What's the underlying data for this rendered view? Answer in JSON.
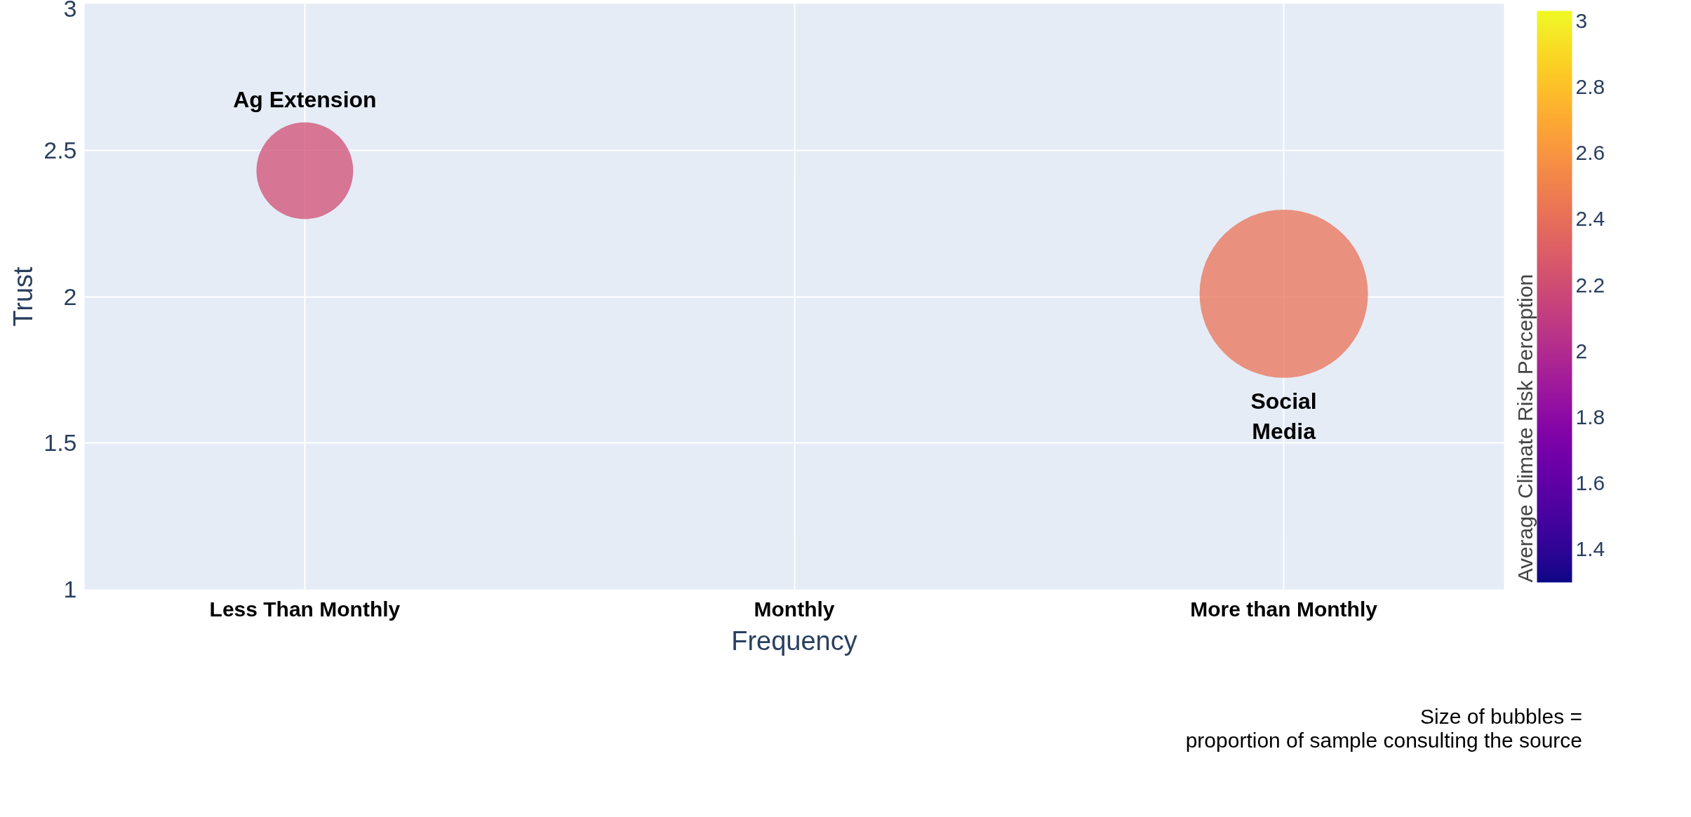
{
  "chart_data": {
    "type": "bubble",
    "xlabel": "Frequency",
    "ylabel": "Trust",
    "clabel": "Average Climate Risk Perception",
    "categories": [
      "Less Than Monthly",
      "Monthly",
      "More than Monthly"
    ],
    "series": [
      {
        "name": "Ag Extension",
        "values": [
          2.43,
          null,
          null
        ],
        "sizes": [
          0.33,
          null,
          null
        ],
        "cvalues": [
          2.2,
          null,
          null
        ]
      },
      {
        "name": "Social\nMedia",
        "values": [
          null,
          null,
          2.01
        ],
        "sizes": [
          null,
          null,
          1
        ],
        "cvalues": [
          null,
          null,
          2.42
        ]
      }
    ],
    "clim": [
      1.3,
      3.03
    ],
    "cticks": [
      1.4,
      1.6,
      1.8,
      2,
      2.2,
      2.4,
      2.6,
      2.8,
      3
    ],
    "ylim": [
      1,
      3
    ],
    "yticks": [
      1,
      1.5,
      2,
      2.5,
      3
    ],
    "grid": true,
    "annotations": [
      "Size of bubbles =\nproportion of sample consulting the source"
    ]
  }
}
